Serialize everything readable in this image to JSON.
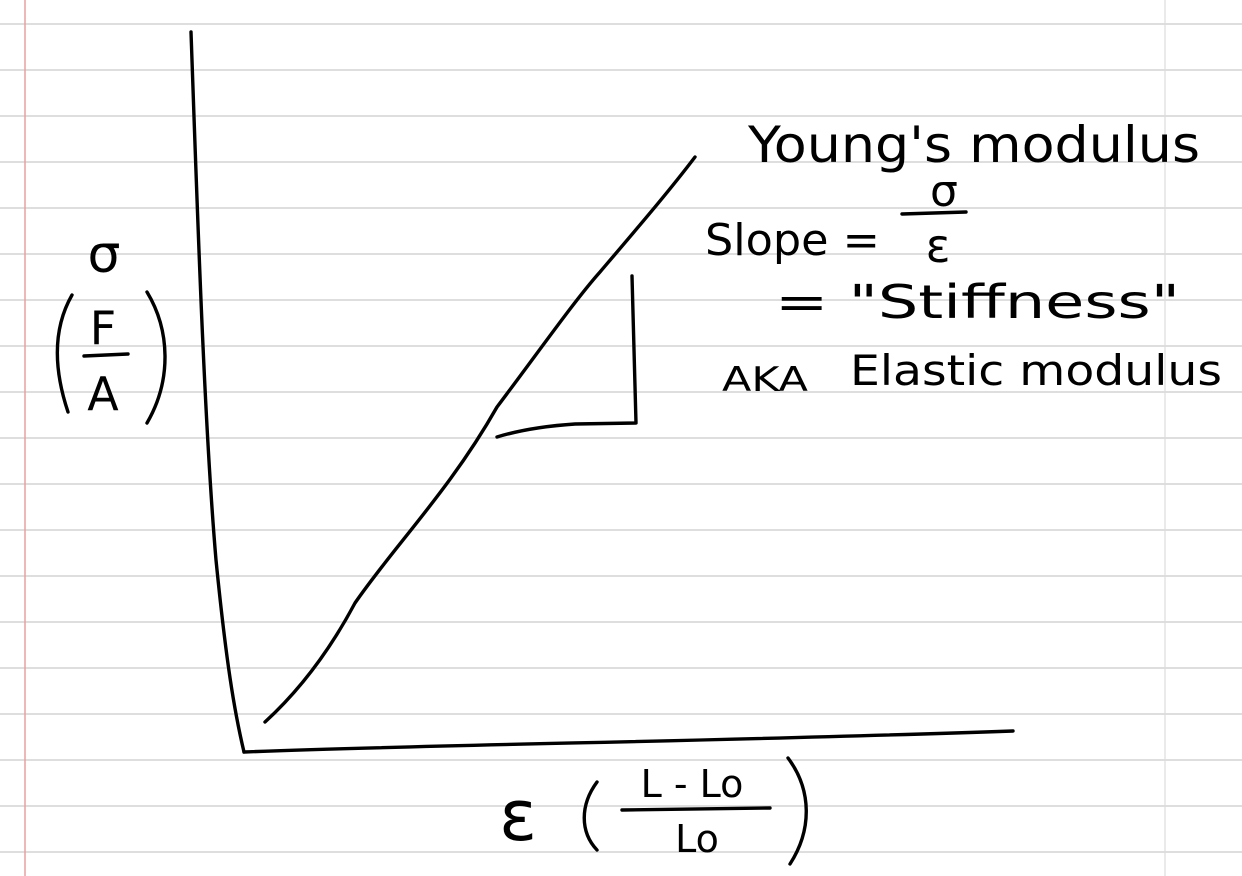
{
  "paper": {
    "rule_color": "#d4d4d4",
    "margin_color": "#e8a0a0",
    "right_margin_color": "#dcdcdc",
    "ink_color": "#000000"
  },
  "axes": {
    "y_symbol": "σ",
    "y_fraction_numerator": "F",
    "y_fraction_denominator": "A",
    "x_symbol": "ε",
    "x_fraction_numerator": "L - Lo",
    "x_fraction_denominator": "Lo"
  },
  "notes": {
    "title": "Young's modulus",
    "slope_label": "Slope =",
    "slope_numerator": "σ",
    "slope_denominator": "ε",
    "stiffness": "= \"Stiffness\"",
    "aka": "AKA",
    "elastic": "Elastic modulus"
  }
}
